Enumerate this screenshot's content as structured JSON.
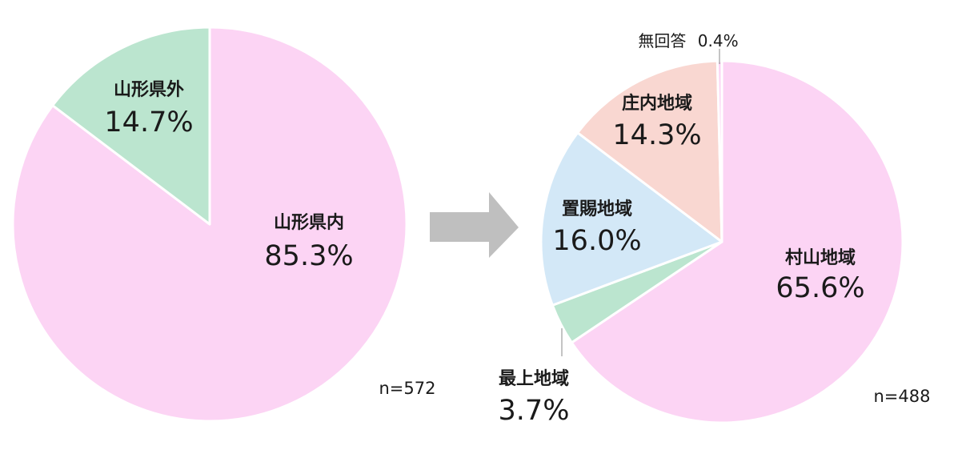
{
  "colors": {
    "pink": "#FCD4F4",
    "green": "#BBE5CF",
    "blue": "#D3E8F7",
    "salmon": "#F9D7D1",
    "arrow": "#BFBFBF",
    "slice_border": "#ffffff"
  },
  "chart_data": [
    {
      "type": "pie",
      "n_label": "n=572",
      "slices": [
        {
          "name": "山形県内",
          "value": 85.3,
          "label": "85.3%",
          "color": "#FCD4F4"
        },
        {
          "name": "山形県外",
          "value": 14.7,
          "label": "14.7%",
          "color": "#BBE5CF"
        }
      ]
    },
    {
      "type": "pie",
      "n_label": "n=488",
      "slices": [
        {
          "name": "村山地域",
          "value": 65.6,
          "label": "65.6%",
          "color": "#FCD4F4"
        },
        {
          "name": "最上地域",
          "value": 3.7,
          "label": "3.7%",
          "color": "#BBE5CF"
        },
        {
          "name": "置賜地域",
          "value": 16.0,
          "label": "16.0%",
          "color": "#D3E8F7"
        },
        {
          "name": "庄内地域",
          "value": 14.3,
          "label": "14.3%",
          "color": "#F9D7D1"
        },
        {
          "name": "無回答",
          "value": 0.4,
          "label": "0.4%",
          "color": "#FCD4F4"
        }
      ]
    }
  ]
}
